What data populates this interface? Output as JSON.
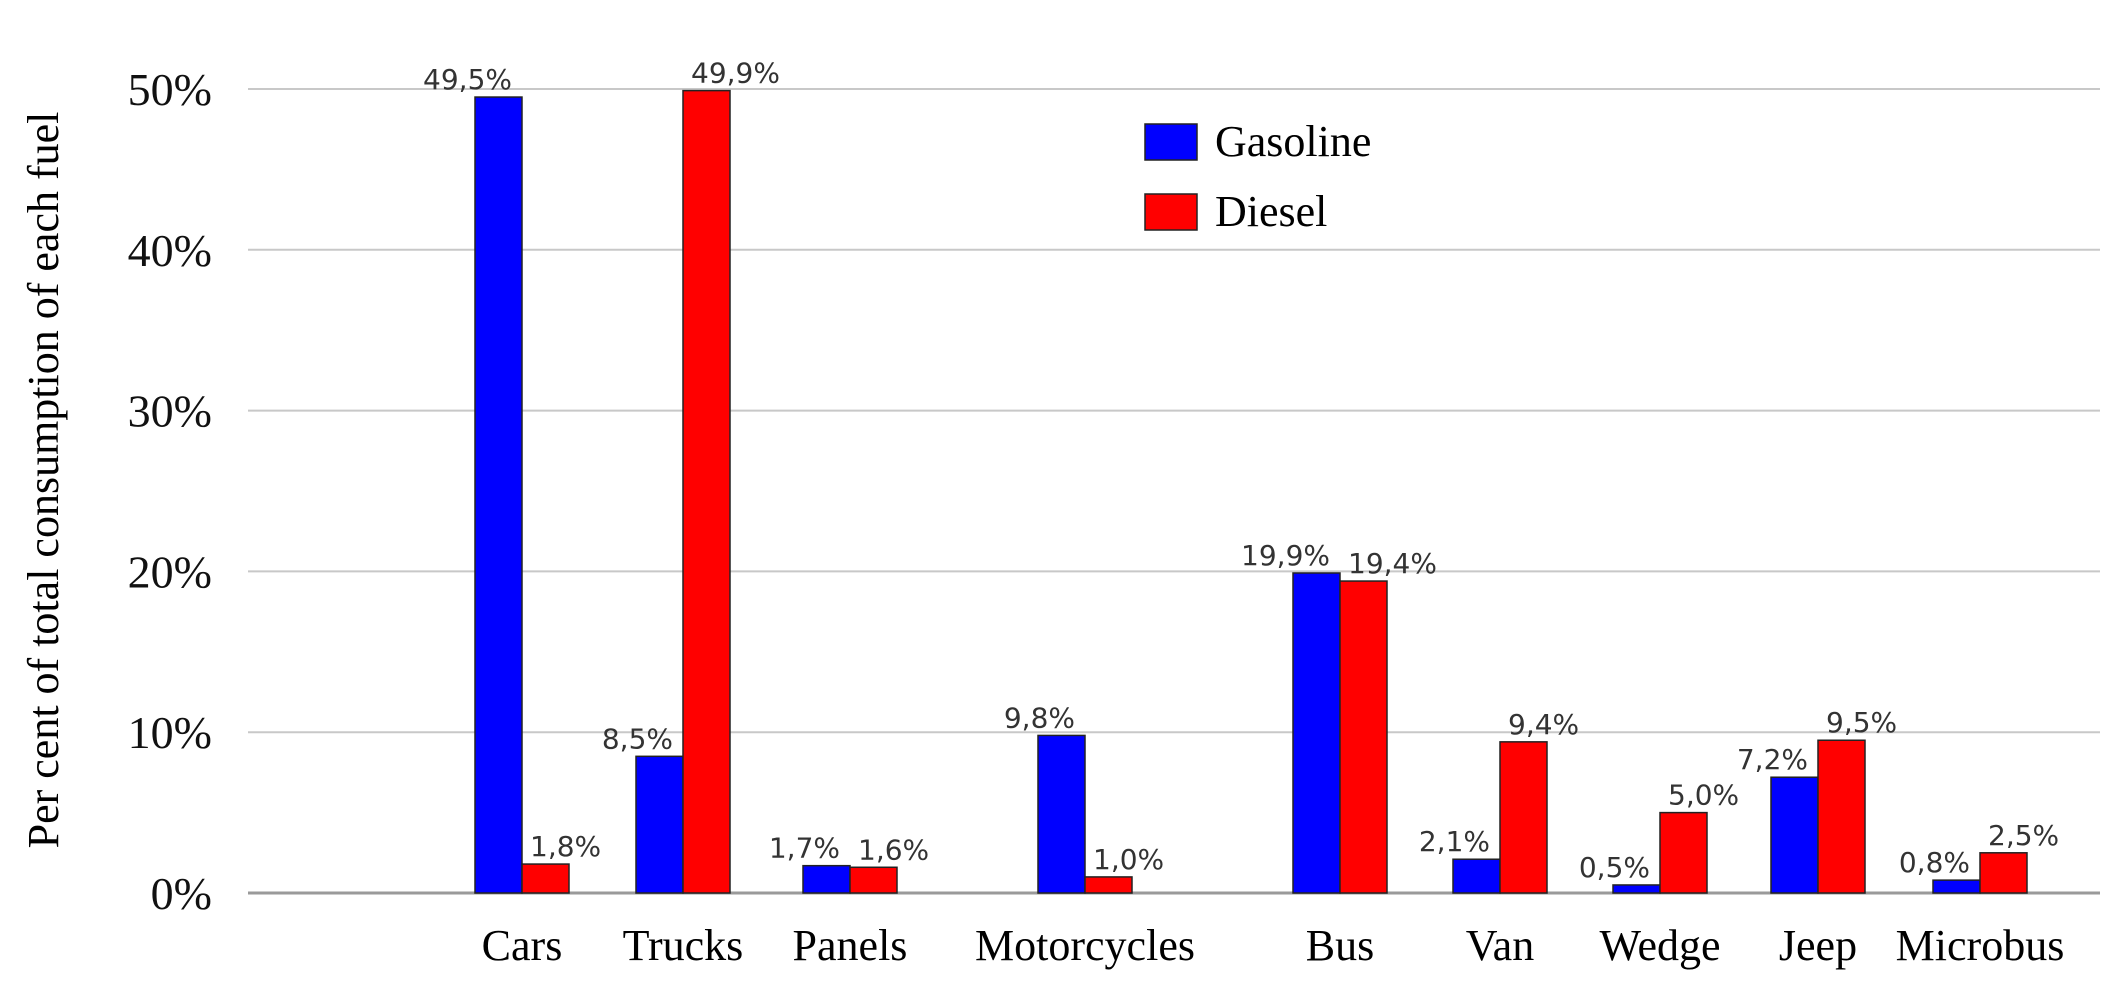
{
  "chart_data": {
    "type": "bar",
    "ylabel": "Per cent of total consumption of each fuel",
    "xlabel": "",
    "ylim": [
      0,
      50
    ],
    "yticks": [
      0,
      10,
      20,
      30,
      40,
      50
    ],
    "ytick_labels": [
      "0%",
      "10%",
      "20%",
      "30%",
      "40%",
      "50%"
    ],
    "grid": true,
    "legend_position": "top-center",
    "categories": [
      "Cars",
      "Trucks",
      "Panels",
      "Motorcycles",
      "Bus",
      "Van",
      "Wedge",
      "Jeep",
      "Microbus"
    ],
    "series": [
      {
        "name": "Gasoline",
        "color": "#0000ff",
        "values": [
          49.5,
          8.5,
          1.7,
          9.8,
          19.9,
          2.1,
          0.5,
          7.2,
          0.8
        ],
        "labels": [
          "49,5%",
          "8,5%",
          "1,7%",
          "9,8%",
          "19,9%",
          "2,1%",
          "0,5%",
          "7,2%",
          "0,8%"
        ]
      },
      {
        "name": "Diesel",
        "color": "#ff0000",
        "values": [
          1.8,
          49.9,
          1.6,
          1.0,
          19.4,
          9.4,
          5.0,
          9.5,
          2.5
        ],
        "labels": [
          "1,8%",
          "49,9%",
          "1,6%",
          "1,0%",
          "19,4%",
          "9,4%",
          "5,0%",
          "9,5%",
          "2,5%"
        ]
      }
    ]
  }
}
